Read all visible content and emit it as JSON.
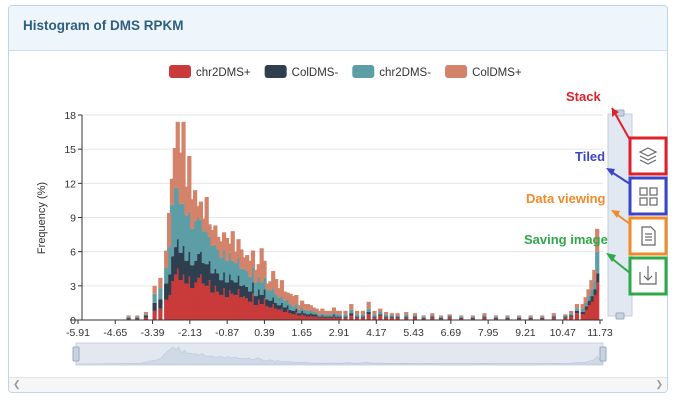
{
  "panel": {
    "title": "Histogram of DMS RPKM"
  },
  "annotations": {
    "stack": "Stack",
    "tiled": "Tiled",
    "data_view": "Data viewing",
    "save_image": "Saving image"
  },
  "colors": {
    "chr2DMS+": "#c93a3a",
    "ColDMS-": "#2f3f4f",
    "chr2DMS-": "#5d9ea6",
    "ColDMS+": "#d4836b",
    "annotation_stack": "#e0202b",
    "annotation_tiled": "#3a45c8",
    "annotation_data_view": "#f08a2a",
    "annotation_save": "#2fa84a"
  },
  "toolbox": [
    "stack-icon",
    "tiled-icon",
    "data-view-icon",
    "save-image-icon"
  ],
  "chart_data": {
    "type": "bar",
    "stacked": true,
    "title": "Histogram of DMS RPKM",
    "xlabel": "",
    "ylabel": "Frequency (%)",
    "ylim": [
      0,
      18
    ],
    "yticks": [
      0,
      3,
      6,
      9,
      12,
      15,
      18
    ],
    "xlim": [
      -5.91,
      12.1
    ],
    "xticks": [
      "-5.91",
      "-4.65",
      "-3.39",
      "-2.13",
      "-0.87",
      "0.39",
      "1.65",
      "2.91",
      "4.17",
      "5.43",
      "6.69",
      "7.95",
      "9.21",
      "10.47",
      "11.73"
    ],
    "legend_position": "top",
    "grid": true,
    "x": [
      -4.3,
      -4.0,
      -3.7,
      -3.4,
      -3.2,
      -3.0,
      -2.9,
      -2.8,
      -2.7,
      -2.6,
      -2.5,
      -2.4,
      -2.3,
      -2.2,
      -2.1,
      -2.0,
      -1.9,
      -1.8,
      -1.7,
      -1.6,
      -1.5,
      -1.4,
      -1.3,
      -1.2,
      -1.1,
      -1.0,
      -0.9,
      -0.8,
      -0.7,
      -0.6,
      -0.5,
      -0.4,
      -0.3,
      -0.2,
      -0.1,
      0.0,
      0.1,
      0.2,
      0.3,
      0.4,
      0.5,
      0.6,
      0.7,
      0.8,
      0.9,
      1.0,
      1.1,
      1.2,
      1.3,
      1.4,
      1.5,
      1.6,
      1.7,
      1.8,
      1.9,
      2.0,
      2.1,
      2.2,
      2.3,
      2.4,
      2.5,
      2.6,
      2.7,
      2.8,
      2.9,
      3.0,
      3.2,
      3.4,
      3.6,
      3.8,
      4.0,
      4.2,
      4.4,
      4.6,
      4.8,
      5.0,
      5.3,
      5.6,
      5.9,
      6.2,
      6.5,
      6.8,
      7.2,
      7.6,
      8.0,
      8.4,
      8.8,
      9.2,
      9.6,
      10.0,
      10.4,
      10.8,
      11.0,
      11.2,
      11.4,
      11.5,
      11.6,
      11.7,
      11.8,
      11.9
    ],
    "series": [
      {
        "name": "chr2DMS+",
        "values": [
          0.1,
          0.1,
          0.2,
          0.8,
          1.0,
          1.8,
          2.2,
          3.4,
          4.0,
          4.5,
          3.5,
          4.0,
          3.2,
          3.8,
          2.8,
          3.3,
          3.7,
          4.0,
          3.2,
          3.0,
          3.5,
          2.4,
          3.0,
          2.5,
          2.2,
          2.8,
          2.0,
          2.6,
          2.3,
          2.2,
          2.7,
          2.0,
          2.1,
          1.9,
          1.6,
          2.3,
          1.3,
          1.8,
          1.4,
          1.9,
          1.2,
          1.1,
          1.4,
          1.0,
          0.9,
          1.0,
          0.7,
          0.9,
          0.6,
          0.5,
          0.7,
          0.4,
          0.5,
          0.4,
          0.3,
          0.4,
          0.3,
          0.3,
          0.2,
          0.3,
          0.2,
          0.2,
          0.2,
          0.3,
          0.2,
          0.2,
          0.2,
          0.4,
          0.2,
          0.2,
          0.5,
          0.2,
          0.4,
          0.2,
          0.2,
          0.2,
          0.2,
          0.2,
          0.1,
          0.2,
          0.1,
          0.2,
          0.1,
          0.1,
          0.2,
          0.1,
          0.1,
          0.1,
          0.1,
          0.1,
          0.2,
          0.2,
          0.3,
          0.6,
          0.5,
          0.9,
          1.3,
          1.6,
          2.2,
          3.3
        ]
      },
      {
        "name": "ColDMS-",
        "values": [
          0.1,
          0.1,
          0.2,
          0.7,
          0.8,
          1.4,
          1.8,
          2.2,
          2.4,
          2.6,
          2.4,
          2.5,
          2.0,
          2.2,
          2.0,
          1.9,
          2.1,
          2.0,
          1.8,
          1.9,
          1.7,
          1.7,
          1.5,
          1.6,
          1.3,
          1.4,
          1.3,
          1.4,
          1.2,
          1.1,
          1.2,
          1.0,
          1.0,
          1.0,
          0.9,
          1.0,
          0.8,
          0.9,
          0.8,
          0.8,
          0.6,
          0.6,
          0.6,
          0.5,
          0.4,
          0.5,
          0.4,
          0.4,
          0.3,
          0.3,
          0.3,
          0.2,
          0.3,
          0.2,
          0.2,
          0.2,
          0.2,
          0.2,
          0.1,
          0.1,
          0.1,
          0.1,
          0.1,
          0.2,
          0.1,
          0.1,
          0.1,
          0.2,
          0.1,
          0.1,
          0.2,
          0.1,
          0.1,
          0.1,
          0.1,
          0.1,
          0.1,
          0.1,
          0.1,
          0.1,
          0.1,
          0.1,
          0.1,
          0.1,
          0.1,
          0.1,
          0.1,
          0.1,
          0.1,
          0.1,
          0.1,
          0.1,
          0.1,
          0.2,
          0.2,
          0.3,
          0.4,
          0.5,
          0.5,
          0.8
        ]
      },
      {
        "name": "chr2DMS-",
        "values": [
          0.1,
          0.1,
          0.1,
          0.8,
          1.0,
          1.4,
          2.4,
          4.5,
          5.2,
          4.5,
          4.3,
          3.7,
          4.0,
          3.5,
          3.2,
          3.5,
          3.2,
          2.8,
          2.8,
          2.9,
          2.1,
          2.4,
          2.1,
          2.1,
          2.0,
          2.0,
          1.9,
          1.9,
          1.7,
          1.7,
          1.6,
          1.5,
          1.4,
          1.4,
          1.3,
          1.3,
          1.2,
          1.1,
          1.1,
          1.0,
          0.9,
          0.9,
          0.8,
          0.8,
          0.7,
          0.6,
          0.6,
          0.5,
          0.5,
          0.4,
          0.4,
          0.3,
          0.3,
          0.3,
          0.3,
          0.3,
          0.2,
          0.2,
          0.2,
          0.2,
          0.2,
          0.2,
          0.2,
          0.2,
          0.2,
          0.2,
          0.2,
          0.3,
          0.2,
          0.2,
          0.3,
          0.2,
          0.2,
          0.2,
          0.1,
          0.1,
          0.2,
          0.1,
          0.1,
          0.1,
          0.1,
          0.1,
          0.1,
          0.1,
          0.1,
          0.1,
          0.1,
          0.1,
          0.1,
          0.1,
          0.1,
          0.1,
          0.2,
          0.2,
          0.3,
          0.3,
          0.4,
          0.6,
          0.7,
          1.9
        ]
      },
      {
        "name": "ColDMS+",
        "values": [
          0.1,
          0.1,
          0.2,
          0.7,
          0.9,
          1.5,
          3.0,
          2.3,
          3.5,
          5.8,
          4.5,
          7.2,
          2.5,
          4.9,
          2.6,
          2.7,
          1.0,
          1.6,
          1.1,
          3.0,
          1.1,
          1.4,
          1.7,
          1.1,
          1.4,
          1.5,
          2.0,
          0.8,
          2.6,
          1.0,
          1.6,
          1.7,
          1.0,
          1.4,
          1.4,
          1.5,
          1.1,
          1.1,
          3.0,
          1.5,
          0.5,
          0.8,
          1.5,
          1.3,
          0.8,
          1.4,
          0.8,
          0.6,
          0.9,
          0.9,
          0.8,
          0.4,
          0.6,
          0.5,
          0.6,
          0.4,
          0.4,
          0.3,
          0.3,
          0.4,
          0.3,
          0.3,
          0.3,
          0.4,
          0.3,
          0.3,
          0.3,
          0.5,
          0.3,
          0.3,
          0.6,
          0.3,
          0.3,
          0.2,
          0.2,
          0.2,
          0.2,
          0.2,
          0.1,
          0.2,
          0.1,
          0.1,
          0.1,
          0.1,
          0.2,
          0.1,
          0.1,
          0.1,
          0.1,
          0.1,
          0.2,
          0.1,
          0.2,
          0.4,
          0.4,
          0.5,
          0.6,
          0.8,
          1.0,
          2.0
        ]
      }
    ]
  }
}
